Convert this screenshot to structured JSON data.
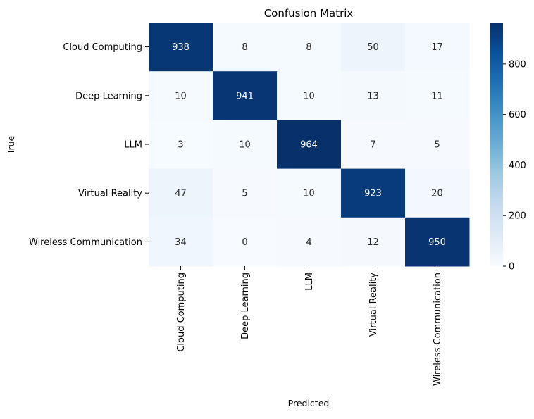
{
  "chart_data": {
    "type": "heatmap",
    "title": "Confusion Matrix",
    "xlabel": "Predicted",
    "ylabel": "True",
    "x_categories": [
      "Cloud Computing",
      "Deep Learning",
      "LLM",
      "Virtual Reality",
      "Wireless Communication"
    ],
    "y_categories": [
      "Cloud Computing",
      "Deep Learning",
      "LLM",
      "Virtual Reality",
      "Wireless Communication"
    ],
    "matrix": [
      [
        938,
        8,
        8,
        50,
        17
      ],
      [
        10,
        941,
        10,
        13,
        11
      ],
      [
        3,
        10,
        964,
        7,
        5
      ],
      [
        47,
        5,
        10,
        923,
        20
      ],
      [
        34,
        0,
        4,
        12,
        950
      ]
    ],
    "colorbar": {
      "colormap": "Blues",
      "min": 0,
      "max": 964,
      "ticks": [
        0,
        200,
        400,
        600,
        800
      ]
    },
    "annotations": true,
    "grid": false
  }
}
